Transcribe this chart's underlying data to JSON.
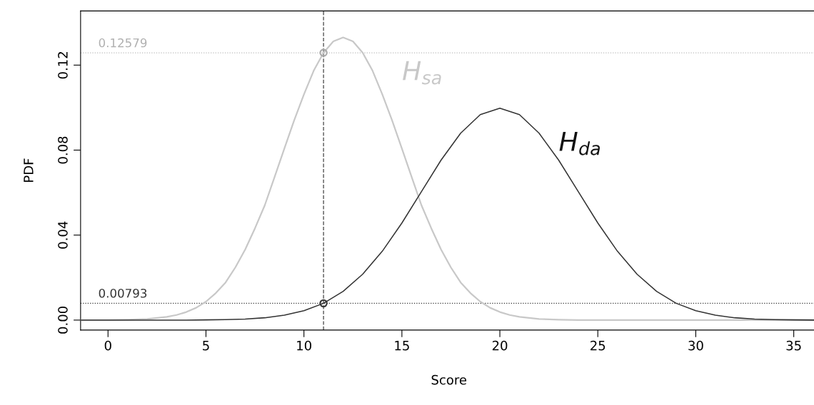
{
  "chart_data": {
    "type": "line",
    "xlabel": "Score",
    "ylabel": "PDF",
    "xlim": [
      -1.4,
      36.2
    ],
    "ylim": [
      -0.0047,
      0.1455
    ],
    "xticks": [
      0,
      5,
      10,
      15,
      20,
      25,
      30,
      35
    ],
    "yticks": [
      {
        "value": 0,
        "label": "0.00"
      },
      {
        "value": 0.04,
        "label": "0.04"
      },
      {
        "value": 0.08,
        "label": "0.08"
      },
      {
        "value": 0.12,
        "label": "0.12"
      }
    ],
    "grid": false,
    "legend": false,
    "marker": "none",
    "line_style": "solid",
    "series": [
      {
        "name": "H$_{sa}$",
        "color": "#c8c8c8",
        "x": [
          -1.4,
          0,
          1,
          2,
          3,
          3.5,
          4,
          4.5,
          5,
          5.5,
          6,
          6.5,
          7,
          7.5,
          8,
          8.5,
          9,
          9.5,
          10,
          10.5,
          11,
          11.5,
          12,
          12.5,
          13,
          13.5,
          14,
          14.5,
          15,
          15.5,
          16,
          16.5,
          17,
          17.5,
          18,
          18.5,
          19,
          19.5,
          20,
          20.5,
          21,
          22,
          23,
          24,
          25,
          26,
          36.2
        ],
        "values": [
          0,
          0,
          0.0002,
          0.0005,
          0.0015,
          0.0024,
          0.0038,
          0.0058,
          0.0087,
          0.0127,
          0.0177,
          0.0248,
          0.0332,
          0.0432,
          0.054,
          0.0673,
          0.0807,
          0.094,
          0.1062,
          0.1174,
          0.1258,
          0.1312,
          0.133,
          0.1312,
          0.1258,
          0.1174,
          0.1062,
          0.094,
          0.0807,
          0.0673,
          0.054,
          0.0432,
          0.0332,
          0.0248,
          0.0177,
          0.0127,
          0.0087,
          0.0058,
          0.0038,
          0.0024,
          0.0015,
          0.0005,
          0.0002,
          0,
          0,
          0,
          0
        ]
      },
      {
        "name": "H$_{da}$",
        "color": "#333333",
        "x": [
          -1.4,
          4,
          5,
          6,
          7,
          8,
          9,
          10,
          11,
          12,
          13,
          14,
          15,
          16,
          17,
          18,
          19,
          20,
          21,
          22,
          23,
          24,
          25,
          26,
          27,
          28,
          29,
          30,
          31,
          32,
          33,
          34,
          35,
          36.2
        ],
        "values": [
          0,
          0,
          0.0001,
          0.0002,
          0.0005,
          0.0011,
          0.0023,
          0.0044,
          0.0079,
          0.0135,
          0.0216,
          0.0324,
          0.0457,
          0.0605,
          0.0753,
          0.088,
          0.0967,
          0.0997,
          0.0967,
          0.088,
          0.0753,
          0.0605,
          0.0457,
          0.0324,
          0.0216,
          0.0135,
          0.0079,
          0.0044,
          0.0023,
          0.0011,
          0.0005,
          0.0002,
          0.0001,
          0
        ]
      },
      {
        "type": "scatter",
        "marker": "circle",
        "color": "#aaaaaa",
        "x": [
          11
        ],
        "values": [
          0.1258
        ]
      },
      {
        "type": "scatter",
        "marker": "circle",
        "color": "#333333",
        "x": [
          11
        ],
        "values": [
          0.0079
        ]
      }
    ],
    "ref_lines": [
      {
        "axis": "y",
        "value": 0.12579,
        "label": "0.12579",
        "color": "#c8c8c8",
        "line_style": "dotted"
      },
      {
        "axis": "y",
        "value": 0.00793,
        "label": "0.00793",
        "color": "#333333",
        "line_style": "dotted"
      },
      {
        "axis": "x",
        "value": 11,
        "color": "#555555",
        "line_style": "dashed"
      }
    ]
  }
}
